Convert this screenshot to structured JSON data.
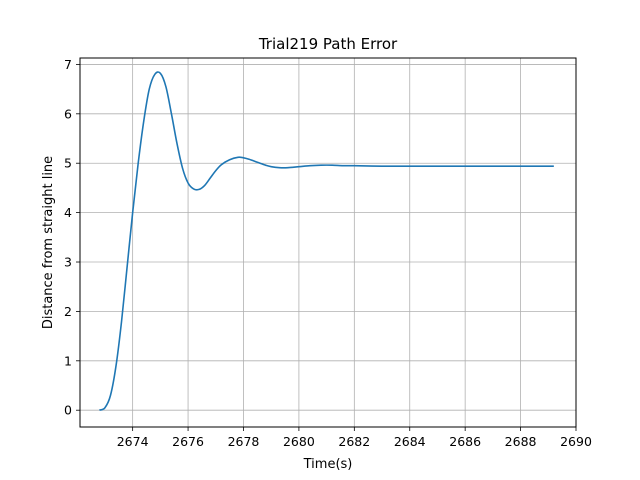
{
  "chart_data": {
    "type": "line",
    "title": "Trial219 Path Error",
    "xlabel": "Time(s)",
    "ylabel": "Distance from straight line",
    "xlim": [
      2672.1,
      2690
    ],
    "ylim": [
      -0.34,
      7.13
    ],
    "xticks": [
      2674,
      2676,
      2678,
      2680,
      2682,
      2684,
      2686,
      2688,
      2690
    ],
    "yticks": [
      0,
      1,
      2,
      3,
      4,
      5,
      6,
      7
    ],
    "grid": true,
    "series": [
      {
        "color": "#1f77b4",
        "x": [
          2672.8,
          2673.0,
          2673.2,
          2673.4,
          2673.6,
          2673.8,
          2674.0,
          2674.2,
          2674.4,
          2674.6,
          2674.8,
          2675.0,
          2675.2,
          2675.4,
          2675.6,
          2675.8,
          2676.0,
          2676.2,
          2676.4,
          2676.6,
          2676.8,
          2677.0,
          2677.2,
          2677.5,
          2677.8,
          2678.0,
          2678.2,
          2678.5,
          2678.8,
          2679.0,
          2679.3,
          2679.6,
          2680.0,
          2680.4,
          2680.8,
          2681.2,
          2681.6,
          2682.0,
          2683.0,
          2684.0,
          2685.0,
          2686.0,
          2687.0,
          2688.0,
          2689.2
        ],
        "y": [
          0.0,
          0.05,
          0.3,
          0.9,
          1.8,
          2.9,
          4.0,
          5.0,
          5.85,
          6.5,
          6.8,
          6.82,
          6.55,
          6.0,
          5.4,
          4.9,
          4.6,
          4.48,
          4.47,
          4.55,
          4.7,
          4.85,
          4.97,
          5.07,
          5.12,
          5.11,
          5.08,
          5.02,
          4.96,
          4.93,
          4.91,
          4.91,
          4.93,
          4.95,
          4.96,
          4.96,
          4.95,
          4.95,
          4.94,
          4.94,
          4.94,
          4.94,
          4.94,
          4.94,
          4.94
        ]
      }
    ]
  }
}
